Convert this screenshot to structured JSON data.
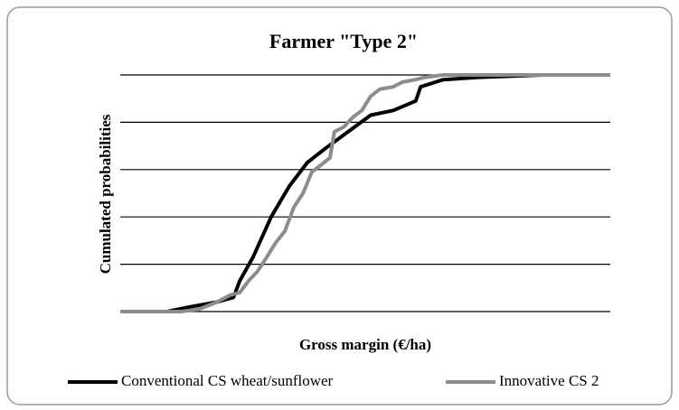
{
  "chart_data": {
    "type": "line",
    "title": "Farmer \"Type 2\"",
    "xlabel": "Gross margin (€/ha)",
    "ylabel": "Cumulated probabilities",
    "xlim": [
      0,
      100
    ],
    "ylim": [
      0,
      1
    ],
    "yticks": [
      0,
      0.2,
      0.4,
      0.6,
      0.8,
      1
    ],
    "grid": true,
    "legend": "bottom",
    "series": [
      {
        "name": "Conventional CS wheat/sunflower",
        "color": "#000000",
        "x": [
          0,
          9.6,
          14.2,
          19.7,
          23.1,
          24.4,
          27.1,
          30.8,
          34.5,
          38.2,
          41.9,
          46.5,
          51.1,
          55.7,
          60.3,
          61.3,
          65.9,
          73.2,
          86.2,
          100
        ],
        "values": [
          0,
          0,
          0.02,
          0.04,
          0.06,
          0.13,
          0.23,
          0.4,
          0.53,
          0.63,
          0.69,
          0.76,
          0.83,
          0.85,
          0.89,
          0.95,
          0.98,
          0.99,
          1.0,
          1.0
        ]
      },
      {
        "name": "Innovative CS 2",
        "color": "#8c8c8c",
        "x": [
          0,
          12.4,
          16.1,
          19.7,
          22.5,
          24.4,
          26.2,
          28.0,
          29.9,
          31.7,
          33.6,
          35.4,
          37.3,
          39.1,
          41.0,
          42.8,
          43.7,
          45.6,
          47.4,
          49.3,
          51.1,
          53.0,
          55.7,
          57.6,
          60.3,
          62.2,
          65.9,
          100
        ],
        "values": [
          0,
          0,
          0.01,
          0.04,
          0.07,
          0.08,
          0.13,
          0.17,
          0.23,
          0.29,
          0.34,
          0.44,
          0.5,
          0.59,
          0.62,
          0.65,
          0.76,
          0.78,
          0.82,
          0.85,
          0.91,
          0.94,
          0.95,
          0.97,
          0.98,
          0.99,
          1.0,
          1.0
        ]
      }
    ]
  }
}
